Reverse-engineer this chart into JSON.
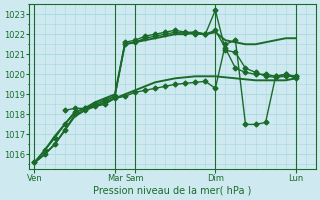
{
  "background_color": "#ceeaf0",
  "grid_color": "#a8d8e0",
  "line_color": "#1a6b2a",
  "title": "Pression niveau de la mer( hPa )",
  "ylim": [
    1015.3,
    1023.5
  ],
  "yticks": [
    1016,
    1017,
    1018,
    1019,
    1020,
    1021,
    1022,
    1023
  ],
  "x_day_labels": [
    "Ven",
    "Mar",
    "Sam",
    "Dim",
    "Lun"
  ],
  "x_day_positions": [
    0,
    8,
    10,
    18,
    26
  ],
  "xlim": [
    -0.5,
    28
  ],
  "series": [
    {
      "x": [
        0,
        1,
        2,
        3,
        4,
        5,
        6,
        7,
        8,
        9,
        10,
        11,
        12,
        13,
        14,
        15,
        16,
        17,
        18,
        19,
        20,
        21,
        22,
        23,
        24,
        25,
        26
      ],
      "y": [
        1015.6,
        1016.0,
        1016.5,
        1017.2,
        1017.9,
        1018.2,
        1018.4,
        1018.6,
        1018.8,
        1019.0,
        1019.2,
        1019.4,
        1019.6,
        1019.7,
        1019.8,
        1019.85,
        1019.9,
        1019.9,
        1019.9,
        1019.85,
        1019.8,
        1019.75,
        1019.7,
        1019.7,
        1019.7,
        1019.7,
        1019.8
      ],
      "marker": null,
      "markersize": 0,
      "linewidth": 1.4
    },
    {
      "x": [
        0,
        1,
        2,
        3,
        4,
        5,
        6,
        7,
        8,
        9,
        10,
        11,
        12,
        13,
        14,
        15,
        16,
        17,
        18,
        19,
        20,
        21,
        22,
        23,
        24,
        25,
        26
      ],
      "y": [
        1015.6,
        1016.0,
        1016.5,
        1017.2,
        1018.0,
        1018.2,
        1018.5,
        1018.7,
        1018.9,
        1021.5,
        1021.6,
        1021.8,
        1021.9,
        1022.0,
        1022.1,
        1022.05,
        1022.0,
        1022.0,
        1022.2,
        1021.3,
        1020.3,
        1020.1,
        1020.0,
        1020.0,
        1019.9,
        1020.0,
        1019.8
      ],
      "marker": "D",
      "markersize": 2.5,
      "linewidth": 1.0
    },
    {
      "x": [
        0,
        1,
        2,
        3,
        4,
        5,
        6,
        7,
        8,
        9,
        10,
        11,
        12,
        13,
        14,
        15,
        16,
        17,
        18,
        19,
        20,
        21,
        22,
        23,
        24,
        25,
        26
      ],
      "y": [
        1015.6,
        1016.2,
        1016.8,
        1017.5,
        1018.1,
        1018.3,
        1018.5,
        1018.7,
        1018.9,
        1021.6,
        1021.7,
        1021.9,
        1022.0,
        1022.1,
        1022.2,
        1022.1,
        1022.1,
        1022.0,
        1023.2,
        1021.2,
        1021.1,
        1020.3,
        1020.1,
        1019.9,
        1019.85,
        1019.9,
        1019.9
      ],
      "marker": "D",
      "markersize": 2.5,
      "linewidth": 1.0
    },
    {
      "x": [
        0,
        1,
        2,
        3,
        4,
        5,
        6,
        7,
        8,
        9,
        10,
        11,
        12,
        13,
        14,
        15,
        16,
        17,
        18,
        19,
        20,
        21,
        22,
        23,
        24,
        25,
        26
      ],
      "y": [
        1015.6,
        1016.2,
        1016.9,
        1017.5,
        1018.1,
        1018.3,
        1018.6,
        1018.8,
        1019.0,
        1021.5,
        1021.6,
        1021.7,
        1021.8,
        1021.9,
        1022.0,
        1022.0,
        1022.1,
        1022.0,
        1022.1,
        1021.7,
        1021.6,
        1021.5,
        1021.5,
        1021.6,
        1021.7,
        1021.8,
        1021.8
      ],
      "marker": null,
      "markersize": 0,
      "linewidth": 1.4
    },
    {
      "x": [
        3,
        4,
        5,
        6,
        7,
        8,
        9,
        10,
        11,
        12,
        13,
        14,
        15,
        16,
        17,
        18,
        19,
        20,
        21,
        22,
        23,
        24,
        25,
        26
      ],
      "y": [
        1018.2,
        1018.3,
        1018.3,
        1018.4,
        1018.5,
        1018.8,
        1018.9,
        1019.1,
        1019.2,
        1019.3,
        1019.4,
        1019.5,
        1019.55,
        1019.6,
        1019.65,
        1019.3,
        1021.5,
        1021.7,
        1017.5,
        1017.5,
        1017.6,
        1019.9,
        1020.0,
        1019.9
      ],
      "marker": "D",
      "markersize": 2.5,
      "linewidth": 1.0
    }
  ]
}
